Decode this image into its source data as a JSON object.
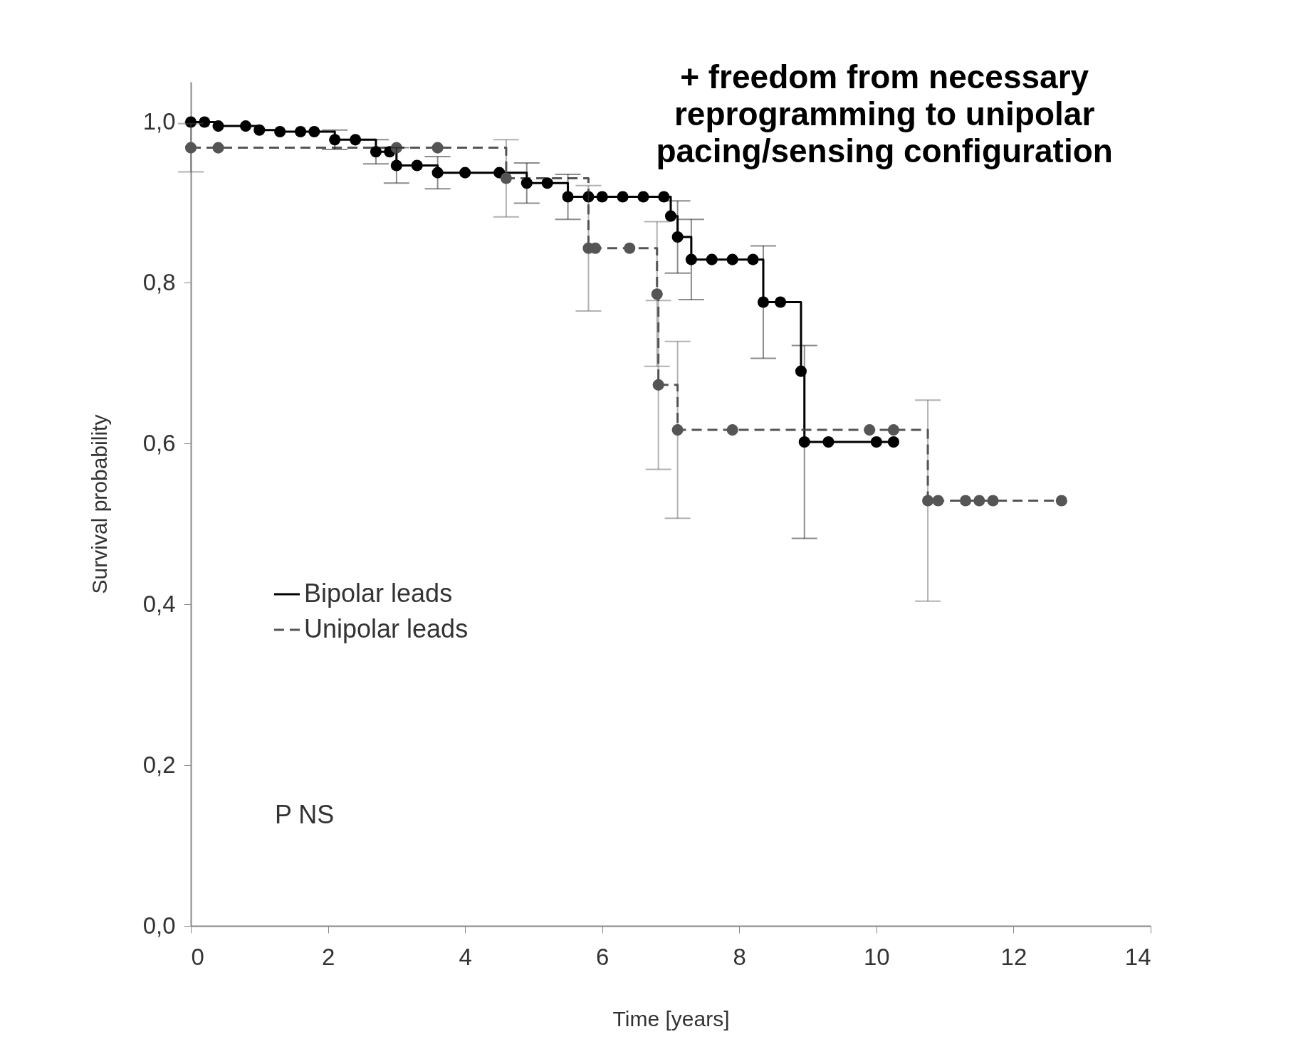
{
  "chart_data": {
    "type": "step",
    "title": "+ freedom from necessary\nreprogramming to unipolar\npacing/sensing configuration",
    "xlabel": "Time [years]",
    "ylabel": "Survival probability",
    "xlim": [
      0,
      14
    ],
    "ylim": [
      0,
      1.05
    ],
    "xticks": [
      0,
      2,
      4,
      6,
      8,
      10,
      12,
      14
    ],
    "yticks": [
      {
        "value": 0,
        "label": "0,0"
      },
      {
        "value": 0.2,
        "label": "0,2"
      },
      {
        "value": 0.4,
        "label": "0,4"
      },
      {
        "value": 0.6,
        "label": "0,6"
      },
      {
        "value": 0.8,
        "label": "0,8"
      },
      {
        "value": 1,
        "label": "1,0"
      }
    ],
    "grid": false,
    "legend": "bottom left",
    "marker": "circle",
    "annotations": [
      "P NS"
    ],
    "series": [
      {
        "name": "Bipolar leads",
        "color": "#000000",
        "line_style": "solid",
        "x": [
          0,
          0.2,
          0.4,
          0.8,
          1.0,
          1.3,
          1.6,
          1.8,
          2.1,
          2.4,
          2.7,
          2.9,
          3.0,
          3.3,
          3.6,
          4.0,
          4.5,
          4.9,
          5.2,
          5.5,
          5.8,
          6.0,
          6.3,
          6.6,
          6.9,
          7.0,
          7.1,
          7.3,
          7.6,
          7.9,
          8.2,
          8.35,
          8.6,
          8.9,
          8.95,
          9.3,
          10.0,
          10.25
        ],
        "values": [
          1.0,
          1.0,
          0.995,
          0.995,
          0.99,
          0.988,
          0.988,
          0.988,
          0.978,
          0.978,
          0.963,
          0.963,
          0.946,
          0.946,
          0.937,
          0.937,
          0.937,
          0.924,
          0.924,
          0.907,
          0.907,
          0.907,
          0.907,
          0.907,
          0.907,
          0.883,
          0.857,
          0.829,
          0.829,
          0.829,
          0.829,
          0.776,
          0.776,
          0.69,
          0.602,
          0.602,
          0.602,
          0.602
        ],
        "errors": [
          null,
          null,
          null,
          null,
          null,
          null,
          null,
          null,
          0.012,
          null,
          0.015,
          null,
          0.022,
          null,
          0.02,
          null,
          null,
          0.025,
          null,
          0.028,
          null,
          null,
          null,
          null,
          null,
          null,
          0.045,
          0.05,
          null,
          null,
          null,
          0.07,
          null,
          null,
          0.12,
          null,
          null,
          null
        ]
      },
      {
        "name": "Unipolar leads",
        "color": "#555555",
        "line_style": "dashed",
        "x": [
          0,
          0.4,
          3.0,
          3.6,
          4.6,
          5.8,
          5.9,
          6.4,
          6.8,
          6.82,
          7.1,
          7.9,
          9.9,
          10.25,
          10.75,
          10.9,
          11.3,
          11.5,
          11.7,
          12.7
        ],
        "values": [
          0.968,
          0.968,
          0.968,
          0.968,
          0.93,
          0.843,
          0.843,
          0.843,
          0.786,
          0.673,
          0.617,
          0.617,
          0.617,
          0.617,
          0.529,
          0.529,
          0.529,
          0.529,
          0.529,
          0.529
        ],
        "errors": [
          0.03,
          null,
          null,
          null,
          0.048,
          0.078,
          null,
          null,
          0.09,
          0.105,
          0.11,
          null,
          null,
          null,
          0.125,
          null,
          null,
          null,
          null,
          null
        ]
      }
    ]
  }
}
